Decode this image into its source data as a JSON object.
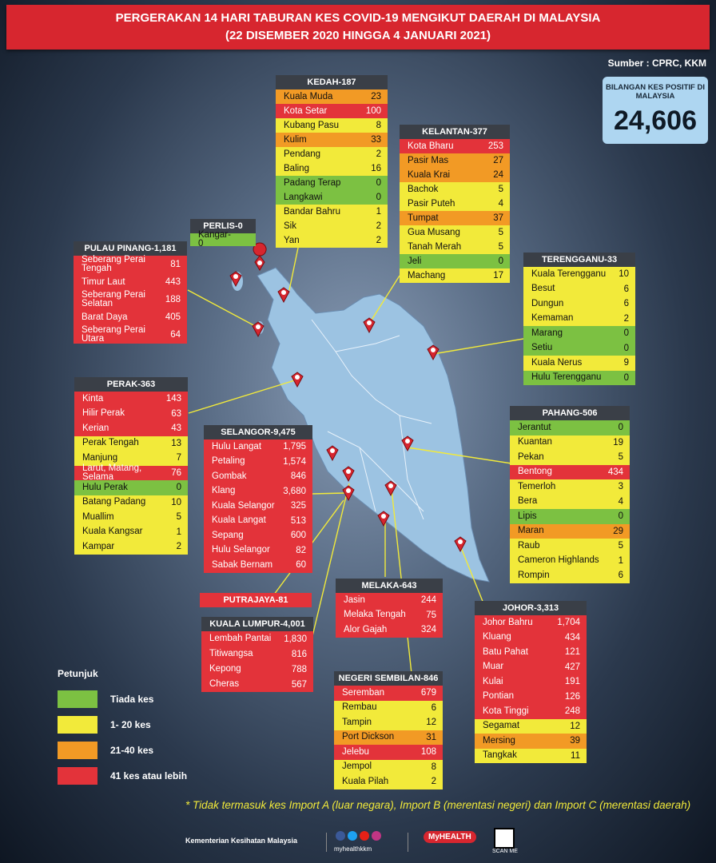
{
  "title_line1": "PERGERAKAN 14 HARI TABURAN KES COVID-19 MENGIKUT DAERAH DI MALAYSIA",
  "title_line2": "(22 DISEMBER 2020 HINGGA 4 JANUARI 2021)",
  "source": "Sumber : CPRC, KKM",
  "total": {
    "label": "BILANGAN KES POSITIF DI MALAYSIA",
    "value": "24,606"
  },
  "colors": {
    "red": "#e3333a",
    "yellow": "#f2ea3a",
    "orange": "#f29a25",
    "green": "#7cc142"
  },
  "states": {
    "kedah": {
      "title": "KEDAH-187",
      "rows": [
        {
          "name": "Kuala Muda",
          "value": "23",
          "level": "org"
        },
        {
          "name": "Kota Setar",
          "value": "100",
          "level": "red"
        },
        {
          "name": "Kubang Pasu",
          "value": "8",
          "level": "yel"
        },
        {
          "name": "Kulim",
          "value": "33",
          "level": "org"
        },
        {
          "name": "Pendang",
          "value": "2",
          "level": "yel"
        },
        {
          "name": "Baling",
          "value": "16",
          "level": "yel"
        },
        {
          "name": "Padang Terap",
          "value": "0",
          "level": "grn"
        },
        {
          "name": "Langkawi",
          "value": "0",
          "level": "grn"
        },
        {
          "name": "Bandar Bahru",
          "value": "1",
          "level": "yel"
        },
        {
          "name": "Sik",
          "value": "2",
          "level": "yel"
        },
        {
          "name": "Yan",
          "value": "2",
          "level": "yel"
        }
      ]
    },
    "kelantan": {
      "title": "KELANTAN-377",
      "rows": [
        {
          "name": "Kota Bharu",
          "value": "253",
          "level": "red"
        },
        {
          "name": "Pasir Mas",
          "value": "27",
          "level": "org"
        },
        {
          "name": "Kuala Krai",
          "value": "24",
          "level": "org"
        },
        {
          "name": "Bachok",
          "value": "5",
          "level": "yel"
        },
        {
          "name": "Pasir Puteh",
          "value": "4",
          "level": "yel"
        },
        {
          "name": "Tumpat",
          "value": "37",
          "level": "org"
        },
        {
          "name": "Gua Musang",
          "value": "5",
          "level": "yel"
        },
        {
          "name": "Tanah Merah",
          "value": "5",
          "level": "yel"
        },
        {
          "name": "Jeli",
          "value": "0",
          "level": "grn"
        },
        {
          "name": "Machang",
          "value": "17",
          "level": "yel"
        }
      ]
    },
    "perlis": {
      "title": "PERLIS-0",
      "rows": [
        {
          "name": "Kangar-0",
          "value": "",
          "level": "grn"
        }
      ]
    },
    "pinang": {
      "title": "PULAU PINANG-1,181",
      "rows": [
        {
          "name": "Seberang Perai Tengah",
          "value": "81",
          "level": "red"
        },
        {
          "name": "Timur Laut",
          "value": "443",
          "level": "red"
        },
        {
          "name": "Seberang Perai Selatan",
          "value": "188",
          "level": "red"
        },
        {
          "name": "Barat Daya",
          "value": "405",
          "level": "red"
        },
        {
          "name": "Seberang Perai Utara",
          "value": "64",
          "level": "red"
        }
      ]
    },
    "terengganu": {
      "title": "TERENGGANU-33",
      "rows": [
        {
          "name": "Kuala Terengganu",
          "value": "10",
          "level": "yel"
        },
        {
          "name": "Besut",
          "value": "6",
          "level": "yel"
        },
        {
          "name": "Dungun",
          "value": "6",
          "level": "yel"
        },
        {
          "name": "Kemaman",
          "value": "2",
          "level": "yel"
        },
        {
          "name": "Marang",
          "value": "0",
          "level": "grn"
        },
        {
          "name": "Setiu",
          "value": "0",
          "level": "grn"
        },
        {
          "name": "Kuala Nerus",
          "value": "9",
          "level": "yel"
        },
        {
          "name": "Hulu Terengganu",
          "value": "0",
          "level": "grn"
        }
      ]
    },
    "perak": {
      "title": "PERAK-363",
      "rows": [
        {
          "name": "Kinta",
          "value": "143",
          "level": "red"
        },
        {
          "name": "Hilir Perak",
          "value": "63",
          "level": "red"
        },
        {
          "name": "Kerian",
          "value": "43",
          "level": "red"
        },
        {
          "name": "Perak Tengah",
          "value": "13",
          "level": "yel"
        },
        {
          "name": "Manjung",
          "value": "7",
          "level": "yel"
        },
        {
          "name": "Larut, Matang, Selama",
          "value": "76",
          "level": "red"
        },
        {
          "name": "Hulu Perak",
          "value": "0",
          "level": "grn"
        },
        {
          "name": "Batang Padang",
          "value": "10",
          "level": "yel"
        },
        {
          "name": "Muallim",
          "value": "5",
          "level": "yel"
        },
        {
          "name": "Kuala Kangsar",
          "value": "1",
          "level": "yel"
        },
        {
          "name": "Kampar",
          "value": "2",
          "level": "yel"
        }
      ]
    },
    "selangor": {
      "title": "SELANGOR-9,475",
      "rows": [
        {
          "name": "Hulu Langat",
          "value": "1,795",
          "level": "red"
        },
        {
          "name": "Petaling",
          "value": "1,574",
          "level": "red"
        },
        {
          "name": "Gombak",
          "value": "846",
          "level": "red"
        },
        {
          "name": "Klang",
          "value": "3,680",
          "level": "red"
        },
        {
          "name": "Kuala Selangor",
          "value": "325",
          "level": "red"
        },
        {
          "name": "Kuala Langat",
          "value": "513",
          "level": "red"
        },
        {
          "name": "Sepang",
          "value": "600",
          "level": "red"
        },
        {
          "name": "Hulu Selangor",
          "value": "82",
          "level": "red"
        },
        {
          "name": "Sabak Bernam",
          "value": "60",
          "level": "red"
        }
      ]
    },
    "pahang": {
      "title": "PAHANG-506",
      "rows": [
        {
          "name": "Jerantut",
          "value": "0",
          "level": "grn"
        },
        {
          "name": "Kuantan",
          "value": "19",
          "level": "yel"
        },
        {
          "name": "Pekan",
          "value": "5",
          "level": "yel"
        },
        {
          "name": "Bentong",
          "value": "434",
          "level": "red"
        },
        {
          "name": "Temerloh",
          "value": "3",
          "level": "yel"
        },
        {
          "name": "Bera",
          "value": "4",
          "level": "yel"
        },
        {
          "name": "Lipis",
          "value": "0",
          "level": "grn"
        },
        {
          "name": "Maran",
          "value": "29",
          "level": "org"
        },
        {
          "name": "Raub",
          "value": "5",
          "level": "yel"
        },
        {
          "name": "Cameron Highlands",
          "value": "1",
          "level": "yel"
        },
        {
          "name": "Rompin",
          "value": "6",
          "level": "yel"
        }
      ]
    },
    "putrajaya": {
      "title": "PUTRAJAYA-81"
    },
    "kl": {
      "title": "KUALA LUMPUR-4,001",
      "rows": [
        {
          "name": "Lembah Pantai",
          "value": "1,830",
          "level": "red"
        },
        {
          "name": "Titiwangsa",
          "value": "816",
          "level": "red"
        },
        {
          "name": "Kepong",
          "value": "788",
          "level": "red"
        },
        {
          "name": "Cheras",
          "value": "567",
          "level": "red"
        }
      ]
    },
    "melaka": {
      "title": "MELAKA-643",
      "rows": [
        {
          "name": "Jasin",
          "value": "244",
          "level": "red"
        },
        {
          "name": "Melaka Tengah",
          "value": "75",
          "level": "red"
        },
        {
          "name": "Alor Gajah",
          "value": "324",
          "level": "red"
        }
      ]
    },
    "johor": {
      "title": "JOHOR-3,313",
      "rows": [
        {
          "name": "Johor Bahru",
          "value": "1,704",
          "level": "red"
        },
        {
          "name": "Kluang",
          "value": "434",
          "level": "red"
        },
        {
          "name": "Batu Pahat",
          "value": "121",
          "level": "red"
        },
        {
          "name": "Muar",
          "value": "427",
          "level": "red"
        },
        {
          "name": "Kulai",
          "value": "191",
          "level": "red"
        },
        {
          "name": "Pontian",
          "value": "126",
          "level": "red"
        },
        {
          "name": "Kota Tinggi",
          "value": "248",
          "level": "red"
        },
        {
          "name": "Segamat",
          "value": "12",
          "level": "yel"
        },
        {
          "name": "Mersing",
          "value": "39",
          "level": "org"
        },
        {
          "name": "Tangkak",
          "value": "11",
          "level": "yel"
        }
      ]
    },
    "ns": {
      "title": "NEGERI SEMBILAN-846",
      "rows": [
        {
          "name": "Seremban",
          "value": "679",
          "level": "red"
        },
        {
          "name": "Rembau",
          "value": "6",
          "level": "yel"
        },
        {
          "name": "Tampin",
          "value": "12",
          "level": "yel"
        },
        {
          "name": "Port Dickson",
          "value": "31",
          "level": "org"
        },
        {
          "name": "Jelebu",
          "value": "108",
          "level": "red"
        },
        {
          "name": "Jempol",
          "value": "8",
          "level": "yel"
        },
        {
          "name": "Kuala Pilah",
          "value": "2",
          "level": "yel"
        }
      ]
    }
  },
  "legend": {
    "title": "Petunjuk",
    "items": [
      {
        "label": "Tiada kes",
        "level": "grn"
      },
      {
        "label": "1- 20 kes",
        "level": "yel"
      },
      {
        "label": "21-40 kes",
        "level": "org"
      },
      {
        "label": "41 kes atau lebih",
        "level": "red"
      }
    ]
  },
  "note": "* Tidak termasuk kes Import A (luar negara),  Import B (merentasi negeri) dan Import C (merentasi daerah)",
  "footer": {
    "ministry": "Kementerian Kesihatan Malaysia",
    "social": "myhealthkkm",
    "brand": "MyHEALTH",
    "qr": "SCAN ME"
  }
}
